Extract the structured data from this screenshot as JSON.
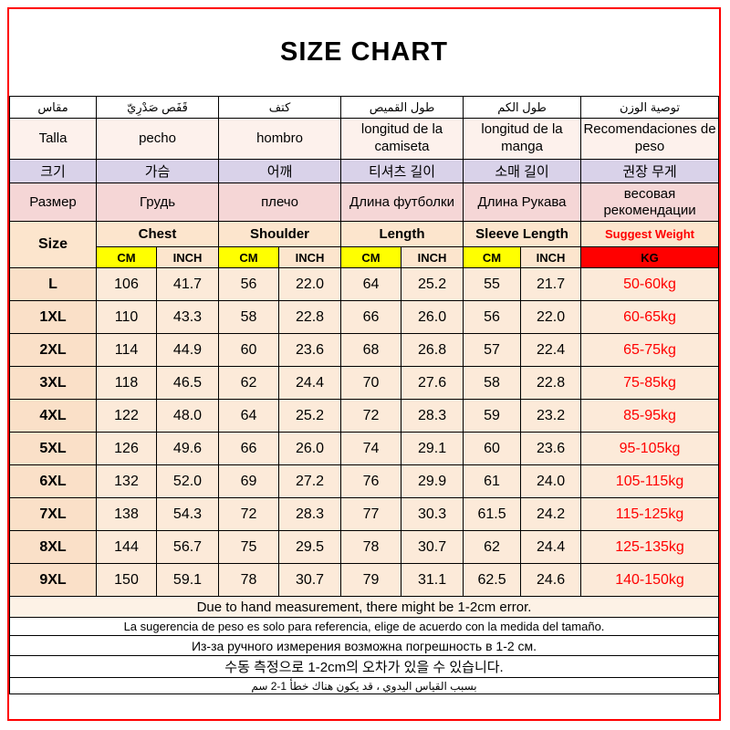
{
  "title": "SIZE CHART",
  "colors": {
    "frame_red": "#ff0000",
    "cm_highlight_yellow": "#ffff00",
    "kg_cell_red": "#ff0000",
    "korean_row_purple": "#d9d2e9",
    "russian_row_pink": "#f5d6d6",
    "english_row_peach": "#fce5cd",
    "weight_text_red": "#ff0000"
  },
  "table": {
    "headers": {
      "arabic": {
        "size": "مقاس",
        "chest": "قَفَص صَدْرِيّ",
        "shoulder": "كتف",
        "length": "طول القميص",
        "sleeve": "طول الكم",
        "weight": "توصية الوزن"
      },
      "spanish": {
        "size": "Talla",
        "chest": "pecho",
        "shoulder": "hombro",
        "length": "longitud de la camiseta",
        "sleeve": "longitud de la manga",
        "weight": "Recomendaciones de peso"
      },
      "korean": {
        "size": "크기",
        "chest": "가슴",
        "shoulder": "어깨",
        "length": "티셔츠 길이",
        "sleeve": "소매 길이",
        "weight": "권장 무게"
      },
      "russian": {
        "size": "Размер",
        "chest": "Грудь",
        "shoulder": "плечо",
        "length": "Длина футболки",
        "sleeve": "Длина Рукава",
        "weight": "весовая рекомендации"
      },
      "english": {
        "size": "Size",
        "chest": "Chest",
        "shoulder": "Shoulder",
        "length": "Length",
        "sleeve": "Sleeve Length",
        "weight": "Suggest Weight"
      }
    },
    "units": {
      "cm": "CM",
      "inch": "INCH",
      "kg": "KG"
    },
    "body": [
      {
        "size": "L",
        "values": [
          "106",
          "41.7",
          "56",
          "22.0",
          "64",
          "25.2",
          "55",
          "21.7"
        ],
        "weight": "50-60kg"
      },
      {
        "size": "1XL",
        "values": [
          "110",
          "43.3",
          "58",
          "22.8",
          "66",
          "26.0",
          "56",
          "22.0"
        ],
        "weight": "60-65kg"
      },
      {
        "size": "2XL",
        "values": [
          "114",
          "44.9",
          "60",
          "23.6",
          "68",
          "26.8",
          "57",
          "22.4"
        ],
        "weight": "65-75kg"
      },
      {
        "size": "3XL",
        "values": [
          "118",
          "46.5",
          "62",
          "24.4",
          "70",
          "27.6",
          "58",
          "22.8"
        ],
        "weight": "75-85kg"
      },
      {
        "size": "4XL",
        "values": [
          "122",
          "48.0",
          "64",
          "25.2",
          "72",
          "28.3",
          "59",
          "23.2"
        ],
        "weight": "85-95kg"
      },
      {
        "size": "5XL",
        "values": [
          "126",
          "49.6",
          "66",
          "26.0",
          "74",
          "29.1",
          "60",
          "23.6"
        ],
        "weight": "95-105kg"
      },
      {
        "size": "6XL",
        "values": [
          "132",
          "52.0",
          "69",
          "27.2",
          "76",
          "29.9",
          "61",
          "24.0"
        ],
        "weight": "105-115kg"
      },
      {
        "size": "7XL",
        "values": [
          "138",
          "54.3",
          "72",
          "28.3",
          "77",
          "30.3",
          "61.5",
          "24.2"
        ],
        "weight": "115-125kg"
      },
      {
        "size": "8XL",
        "values": [
          "144",
          "56.7",
          "75",
          "29.5",
          "78",
          "30.7",
          "62",
          "24.4"
        ],
        "weight": "125-135kg"
      },
      {
        "size": "9XL",
        "values": [
          "150",
          "59.1",
          "78",
          "30.7",
          "79",
          "31.1",
          "62.5",
          "24.6"
        ],
        "weight": "140-150kg"
      }
    ],
    "notes": [
      "Due to hand measurement, there might be 1-2cm error.",
      "La sugerencia de peso es solo para referencia, elige de acuerdo con la medida del tamaño.",
      "Из-за ручного измерения возможна погрешность в 1-2 см.",
      "수동 측정으로 1-2cm의 오차가 있을 수 있습니다.",
      "بسبب القياس اليدوي ، قد يكون هناك خطأ 1-2 سم"
    ]
  }
}
